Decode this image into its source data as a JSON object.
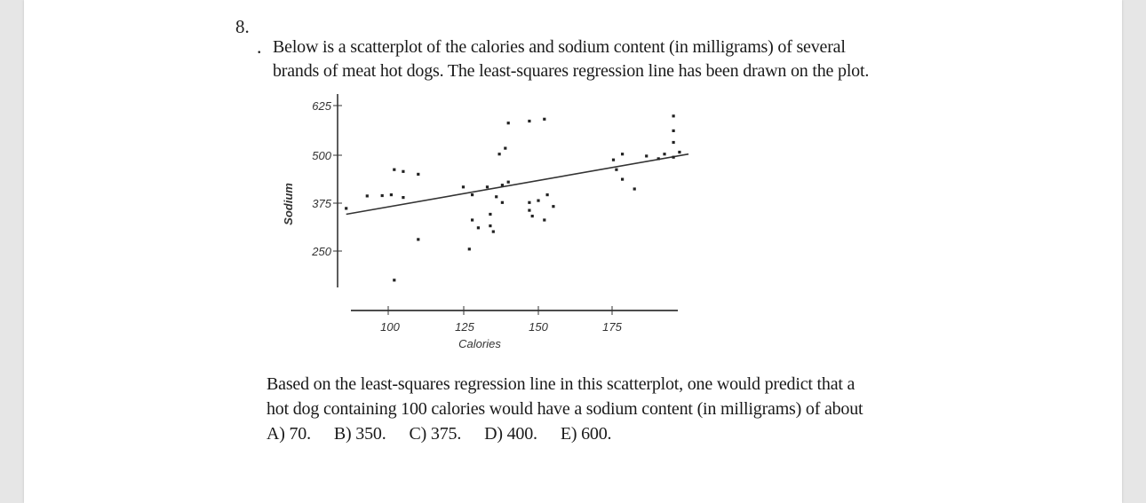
{
  "question": {
    "number": "8.",
    "bullet": ".",
    "intro_lines": [
      "Below is a scatterplot of the calories and sodium content (in milligrams) of several",
      "brands of meat hot dogs. The least-squares regression line has been drawn on the plot."
    ],
    "prompt_lines": [
      "Based on the least-squares regression line in this scatterplot, one would predict that a",
      "hot dog containing 100 calories would have a sodium content (in milligrams) of about"
    ],
    "choices": [
      "A) 70.",
      "B) 350.",
      "C) 375.",
      "D) 400.",
      "E) 600."
    ]
  },
  "chart_data": {
    "type": "scatter",
    "xlabel": "Calories",
    "ylabel": "Sodium",
    "x_ticks": [
      "100",
      "125",
      "150",
      "175"
    ],
    "y_ticks": [
      "625",
      "500",
      "375",
      "250"
    ],
    "points": [
      {
        "x": 86,
        "y": 360
      },
      {
        "x": 93,
        "y": 392
      },
      {
        "x": 98,
        "y": 393
      },
      {
        "x": 101,
        "y": 395
      },
      {
        "x": 105,
        "y": 388
      },
      {
        "x": 102,
        "y": 460
      },
      {
        "x": 105,
        "y": 455
      },
      {
        "x": 110,
        "y": 448
      },
      {
        "x": 110,
        "y": 280
      },
      {
        "x": 102,
        "y": 175
      },
      {
        "x": 125,
        "y": 415
      },
      {
        "x": 128,
        "y": 395
      },
      {
        "x": 128,
        "y": 330
      },
      {
        "x": 130,
        "y": 310
      },
      {
        "x": 127,
        "y": 255
      },
      {
        "x": 133,
        "y": 415
      },
      {
        "x": 136,
        "y": 390
      },
      {
        "x": 134,
        "y": 345
      },
      {
        "x": 134,
        "y": 315
      },
      {
        "x": 138,
        "y": 420
      },
      {
        "x": 140,
        "y": 428
      },
      {
        "x": 138,
        "y": 375
      },
      {
        "x": 135,
        "y": 300
      },
      {
        "x": 137,
        "y": 500
      },
      {
        "x": 139,
        "y": 515
      },
      {
        "x": 140,
        "y": 580
      },
      {
        "x": 147,
        "y": 585
      },
      {
        "x": 147,
        "y": 375
      },
      {
        "x": 147,
        "y": 355
      },
      {
        "x": 150,
        "y": 380
      },
      {
        "x": 148,
        "y": 340
      },
      {
        "x": 152,
        "y": 330
      },
      {
        "x": 153,
        "y": 395
      },
      {
        "x": 155,
        "y": 365
      },
      {
        "x": 152,
        "y": 590
      },
      {
        "x": 175,
        "y": 485
      },
      {
        "x": 176,
        "y": 460
      },
      {
        "x": 178,
        "y": 435
      },
      {
        "x": 182,
        "y": 410
      },
      {
        "x": 178,
        "y": 500
      },
      {
        "x": 186,
        "y": 495
      },
      {
        "x": 190,
        "y": 488
      },
      {
        "x": 192,
        "y": 500
      },
      {
        "x": 195,
        "y": 492
      },
      {
        "x": 197,
        "y": 505
      },
      {
        "x": 195,
        "y": 530
      },
      {
        "x": 195,
        "y": 560
      },
      {
        "x": 195,
        "y": 598
      }
    ],
    "regression_line": {
      "x1": 86,
      "y1": 345,
      "x2": 200,
      "y2": 500
    }
  }
}
